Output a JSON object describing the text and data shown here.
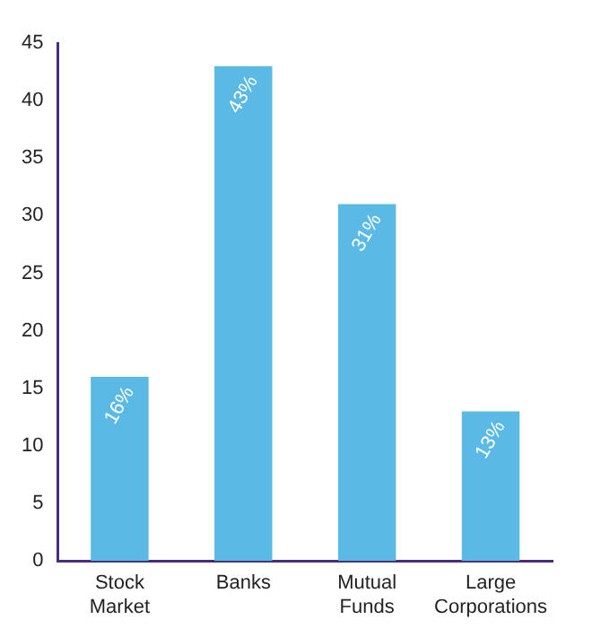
{
  "chart_data": {
    "type": "bar",
    "categories": [
      "Stock Market",
      "Banks",
      "Mutual Funds",
      "Large Corporations"
    ],
    "values": [
      16,
      43,
      31,
      13
    ],
    "value_labels": [
      "16%",
      "43%",
      "31%",
      "13%"
    ],
    "color": "#5ab9e5",
    "ylim": [
      0,
      45
    ],
    "yticks": [
      0,
      5,
      10,
      15,
      20,
      25,
      30,
      35,
      40,
      45
    ],
    "grid": false,
    "legend": false
  }
}
